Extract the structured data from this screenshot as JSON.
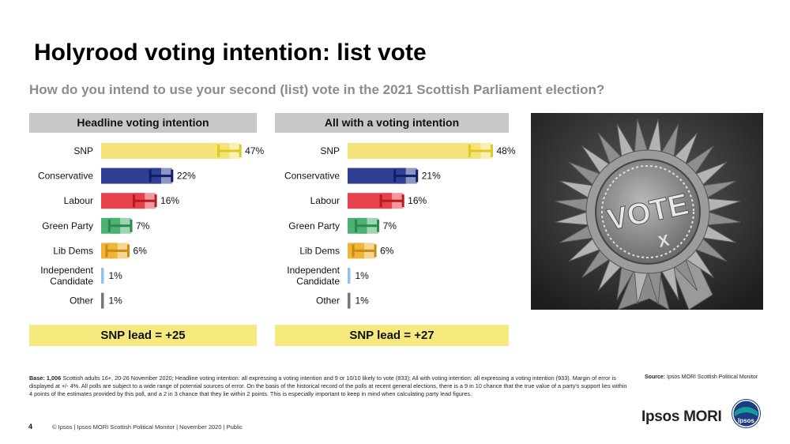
{
  "page": {
    "title": "Holyrood voting intention: list vote",
    "subtitle": "How do you intend to use your second (list) vote in the 2021 Scottish Parliament election?"
  },
  "colors": {
    "SNP": "#f3e37a",
    "SNP_err": "#e0c820",
    "Conservative": "#2f3f94",
    "Conservative_err": "#0f1f64",
    "Labour": "#e8424e",
    "Labour_err": "#b81a24",
    "Green Party": "#4fb073",
    "Green Party_err": "#2a8a4e",
    "Lib Dems": "#f0b43a",
    "Lib Dems_err": "#c98c10",
    "Independent Candidate": "#8ec3ea",
    "Other": "#777777",
    "header_bg": "#c8c8c8",
    "lead_bg": "#f6ea7e"
  },
  "chart_data": [
    {
      "type": "bar",
      "orientation": "horizontal",
      "title": "Headline voting intention",
      "categories": [
        "SNP",
        "Conservative",
        "Labour",
        "Green Party",
        "Lib Dems",
        "Independent Candidate",
        "Other"
      ],
      "category_lines": [
        [
          "SNP"
        ],
        [
          "Conservative"
        ],
        [
          "Labour"
        ],
        [
          "Green Party"
        ],
        [
          "Lib Dems"
        ],
        [
          "Independent",
          "Candidate"
        ],
        [
          "Other"
        ]
      ],
      "values": [
        47,
        22,
        16,
        7,
        6,
        1,
        1
      ],
      "value_labels": [
        "47%",
        "22%",
        "16%",
        "7%",
        "6%",
        "1%",
        "1%"
      ],
      "error_margin": [
        4,
        4,
        4,
        4,
        4,
        0,
        0
      ],
      "xlim": [
        0,
        55
      ],
      "lead_text": "SNP lead = +25"
    },
    {
      "type": "bar",
      "orientation": "horizontal",
      "title": "All with a voting intention",
      "categories": [
        "SNP",
        "Conservative",
        "Labour",
        "Green Party",
        "Lib Dems",
        "Independent Candidate",
        "Other"
      ],
      "category_lines": [
        [
          "SNP"
        ],
        [
          "Conservative"
        ],
        [
          "Labour"
        ],
        [
          "Green Party"
        ],
        [
          "Lib Dems"
        ],
        [
          "Independent",
          "Candidate"
        ],
        [
          "Other"
        ]
      ],
      "values": [
        48,
        21,
        16,
        7,
        6,
        1,
        1
      ],
      "value_labels": [
        "48%",
        "21%",
        "16%",
        "7%",
        "6%",
        "1%",
        "1%"
      ],
      "error_margin": [
        4,
        4,
        4,
        4,
        4,
        0,
        0
      ],
      "xlim": [
        0,
        55
      ],
      "lead_text": "SNP lead = +27"
    }
  ],
  "photo": {
    "rosette_text": "VOTE",
    "mark": "X"
  },
  "notes": {
    "base_label": "Base: 1,006",
    "base_text": " Scottish adults 16+, 20-26 November 2020; Headline voting intention: all expressing a voting intention and 9 or 10/10 likely to vote (833); All with voting intention: all expressing a voting intention (933). Margin of error is displayed at +/- 4%. All polls are subject to a wide range of potential sources of error. On the basis of the historical record of the polls at recent general elections, there is a 9 in 10 chance that the true value of a party's support lies within 4 points of the estimates provided by this poll, and a 2 in 3 chance that they lie within 2 points. This is especially important to keep in mind when calculating party lead figures.",
    "source_label": "Source:",
    "source_text": " Ipsos MORI Scottish Political Monitor"
  },
  "footer": {
    "page_number": "4",
    "text": "© Ipsos | Ipsos MORI Scottish Political Monitor | November 2020 | Public",
    "brand": "Ipsos MORI",
    "logo_text": "Ipsos"
  }
}
